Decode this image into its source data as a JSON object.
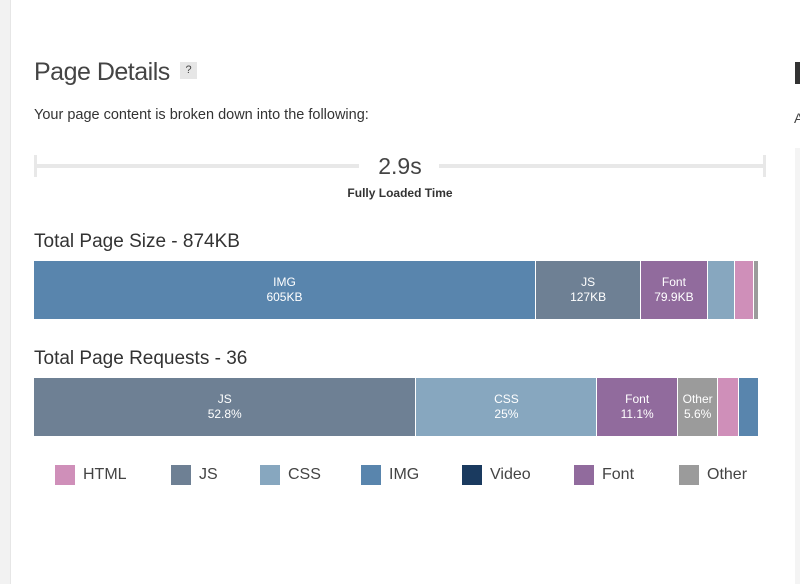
{
  "title": "Page Details",
  "help_label": "?",
  "subtitle": "Your page content is broken down into the following:",
  "fully_loaded": {
    "value": "2.9s",
    "label": "Fully Loaded Time"
  },
  "right_panel": {
    "subtitle_fragment": "A"
  },
  "colors": {
    "HTML": "#cf8fb9",
    "JS": "#6e8094",
    "CSS": "#87a7bf",
    "IMG": "#5985ad",
    "Video": "#1a3a5f",
    "Font": "#916b9d",
    "Other": "#9b9b9b"
  },
  "chart_data": [
    {
      "type": "bar",
      "title": "Total Page Size - 874KB",
      "unit": "KB",
      "segments": [
        {
          "name": "IMG",
          "value": 605,
          "label": "605KB"
        },
        {
          "name": "JS",
          "value": 127,
          "label": "127KB"
        },
        {
          "name": "Font",
          "value": 79.9,
          "label": "79.9KB"
        },
        {
          "name": "CSS",
          "value": 33,
          "label": ""
        },
        {
          "name": "HTML",
          "value": 23,
          "label": ""
        },
        {
          "name": "Other",
          "value": 6,
          "label": ""
        }
      ]
    },
    {
      "type": "bar",
      "title": "Total Page Requests - 36",
      "unit": "%",
      "segments": [
        {
          "name": "JS",
          "value": 52.8,
          "label": "52.8%"
        },
        {
          "name": "CSS",
          "value": 25,
          "label": "25%"
        },
        {
          "name": "Font",
          "value": 11.1,
          "label": "11.1%"
        },
        {
          "name": "Other",
          "value": 5.6,
          "label": "5.6%"
        },
        {
          "name": "HTML",
          "value": 2.8,
          "label": ""
        },
        {
          "name": "IMG",
          "value": 2.8,
          "label": ""
        }
      ]
    }
  ],
  "legend": [
    "HTML",
    "JS",
    "CSS",
    "IMG",
    "Video",
    "Font",
    "Other"
  ]
}
